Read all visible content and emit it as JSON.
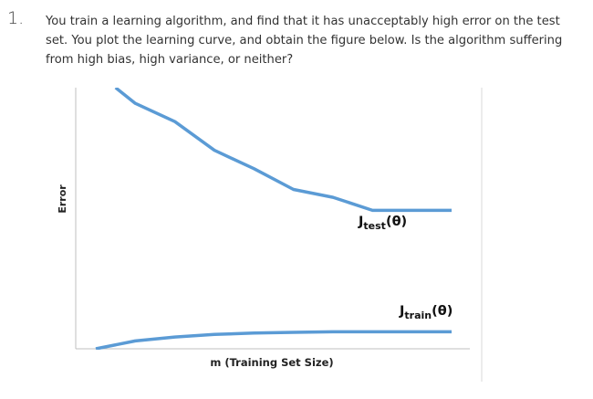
{
  "question": {
    "number": "1.",
    "text": "You train a learning algorithm, and find that it has unacceptably high error on the test set. You plot the learning curve, and obtain the figure below. Is the algorithm suffering from high bias, high variance, or neither?"
  },
  "chart_data": {
    "type": "line",
    "xlabel": "m (Training Set Size)",
    "ylabel": "Error",
    "series": [
      {
        "name": "J_test(θ)",
        "label_main": "J",
        "label_sub": "test",
        "label_arg": "(θ)",
        "color": "#5b9bd5",
        "x": [
          0.5,
          1,
          2,
          3,
          4,
          5,
          6,
          7,
          8,
          9
        ],
        "y": [
          100,
          94,
          87,
          76,
          69,
          61,
          58,
          53,
          53,
          53
        ]
      },
      {
        "name": "J_train(θ)",
        "label_main": "J",
        "label_sub": "train",
        "label_arg": "(θ)",
        "color": "#5b9bd5",
        "x": [
          0,
          1,
          2,
          3,
          4,
          5,
          6,
          7,
          8,
          9
        ],
        "y": [
          0,
          3,
          4.5,
          5.5,
          6,
          6.3,
          6.5,
          6.5,
          6.5,
          6.5
        ]
      }
    ],
    "xlim": [
      -0.5,
      10
    ],
    "ylim": [
      0,
      100
    ],
    "grid": false
  }
}
